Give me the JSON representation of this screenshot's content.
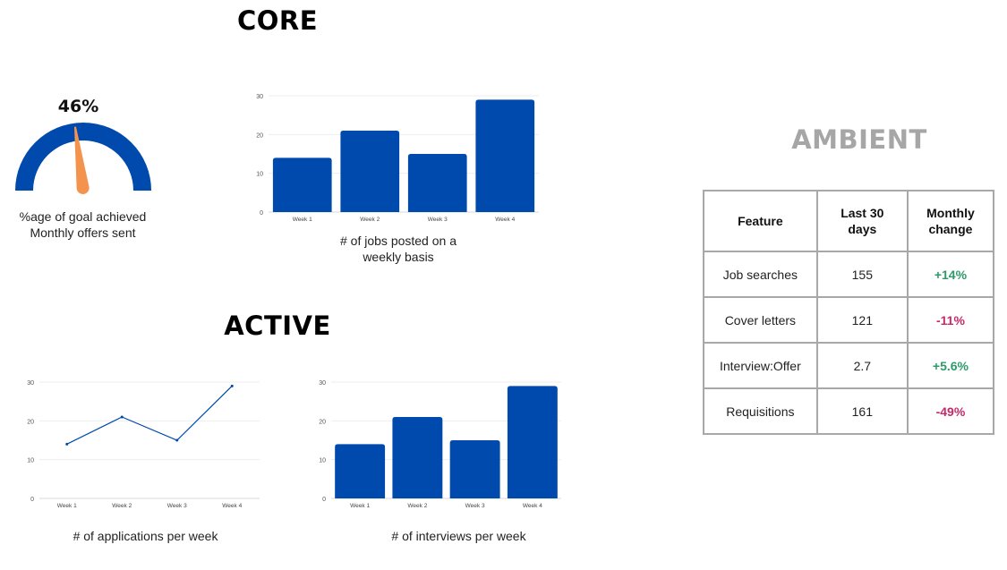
{
  "sections": {
    "core": "CORE",
    "active": "ACTIVE",
    "ambient": "AMBIENT"
  },
  "colors": {
    "bar": "#004aad",
    "needle": "#f4934e",
    "positive": "#2e9a6a",
    "negative": "#c72a6a"
  },
  "gauge": {
    "value_label": "46%",
    "caption_line1": "%age of goal achieved",
    "caption_line2": "Monthly offers sent"
  },
  "chart_data": [
    {
      "id": "gauge",
      "type": "gauge",
      "value": 46,
      "max": 100,
      "label": "46%"
    },
    {
      "id": "jobs",
      "type": "bar",
      "categories": [
        "Week 1",
        "Week 2",
        "Week 3",
        "Week 4"
      ],
      "values": [
        14,
        21,
        15,
        29
      ],
      "ylim": [
        0,
        30
      ],
      "yticks": [
        0,
        10,
        20,
        30
      ],
      "caption": "# of jobs posted on a weekly basis",
      "caption_line1": "# of jobs posted on a",
      "caption_line2": "weekly basis"
    },
    {
      "id": "applications",
      "type": "line",
      "categories": [
        "Week 1",
        "Week 2",
        "Week 3",
        "Week 4"
      ],
      "values": [
        14,
        21,
        15,
        29
      ],
      "ylim": [
        0,
        30
      ],
      "yticks": [
        0,
        10,
        20,
        30
      ],
      "caption": "# of applications per week"
    },
    {
      "id": "interviews",
      "type": "bar",
      "categories": [
        "Week 1",
        "Week 2",
        "Week 3",
        "Week 4"
      ],
      "values": [
        14,
        21,
        15,
        29
      ],
      "ylim": [
        0,
        30
      ],
      "yticks": [
        0,
        10,
        20,
        30
      ],
      "caption": "# of interviews per week"
    }
  ],
  "ambient_table": {
    "headers": {
      "feature": "Feature",
      "last30_line1": "Last 30",
      "last30_line2": "days",
      "change_line1": "Monthly",
      "change_line2": "change"
    },
    "rows": [
      {
        "feature": "Job searches",
        "last30": "155",
        "change": "+14%",
        "trend": "up"
      },
      {
        "feature": "Cover letters",
        "last30": "121",
        "change": "-11%",
        "trend": "down"
      },
      {
        "feature": "Interview:Offer",
        "last30": "2.7",
        "change": "+5.6%",
        "trend": "up"
      },
      {
        "feature": "Requisitions",
        "last30": "161",
        "change": "-49%",
        "trend": "down"
      }
    ]
  }
}
